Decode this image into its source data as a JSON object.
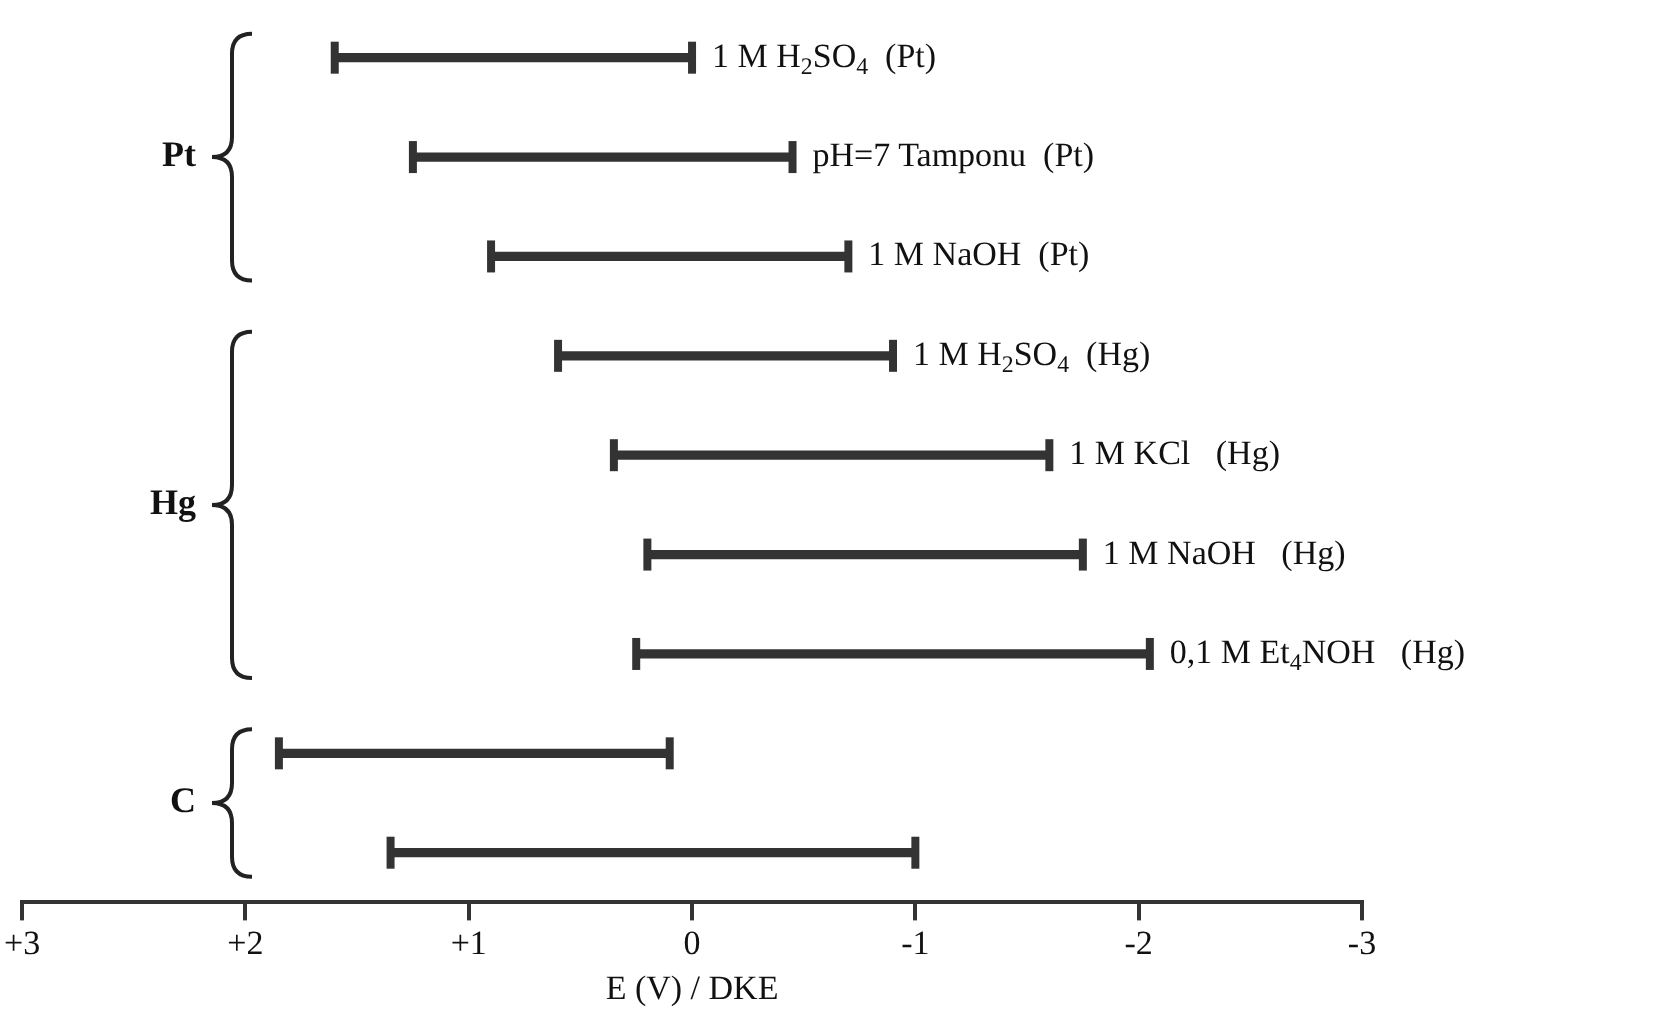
{
  "chart_data": {
    "type": "bar",
    "orientation": "horizontal",
    "categories": [
      "1 M H$_{2}$SO$_{4}$  (Pt)",
      "pH=7 Tamponu  (Pt)",
      "1 M NaOH  (Pt)",
      "1 M H$_{2}$SO$_{4}$  (Hg)",
      "1 M KCl   (Hg)",
      "1 M NaOH   (Hg)",
      "0,1 M Et$_{4}$NOH   (Hg)",
      null,
      null
    ],
    "base": [
      1.6,
      1.25,
      0.9,
      0.6,
      0.35,
      0.2,
      0.25,
      1.85,
      1.35
    ],
    "values": [
      -1.6,
      -1.7,
      -1.6,
      -1.5,
      -1.95,
      -1.95,
      -2.3,
      -1.75,
      -2.35
    ],
    "color": "#333333",
    "xlim": [
      3,
      -3
    ],
    "xticks": [
      {
        "value": 3,
        "label": "+3"
      },
      {
        "value": 2,
        "label": "+2"
      },
      {
        "value": 1,
        "label": "+1"
      },
      0,
      -1,
      -2,
      -3
    ],
    "xlabel": "E (V) / DKE",
    "annotations": [
      "Pt",
      "Hg",
      "C"
    ]
  }
}
